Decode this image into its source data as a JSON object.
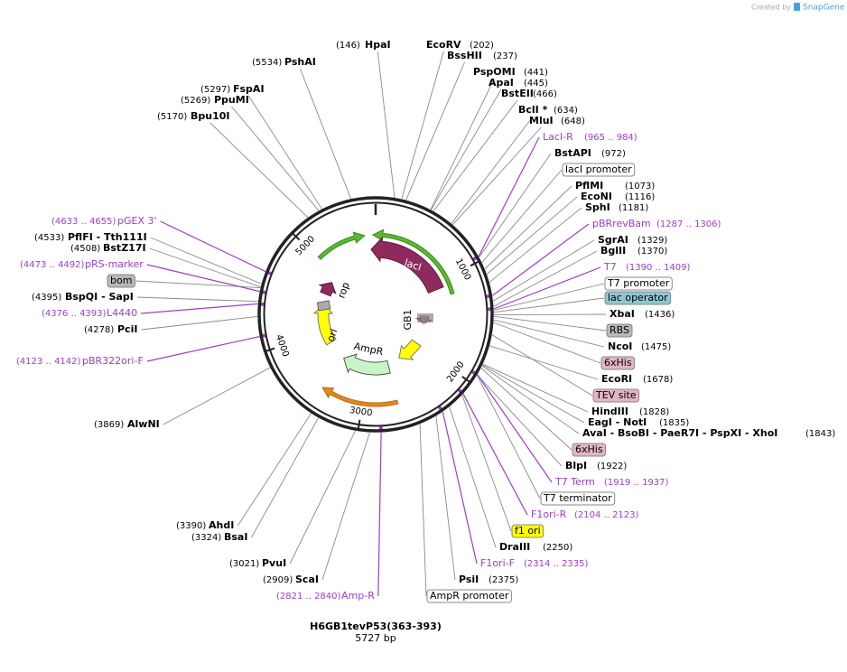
{
  "credit": {
    "text": "Created by",
    "brand": "SnapGene"
  },
  "title": "H6GB1tevP53(363-393)",
  "length": "5727 bp",
  "ring_ticks": [
    "1000",
    "2000",
    "3000",
    "4000",
    "5000"
  ],
  "features": [
    {
      "name": "lacI"
    },
    {
      "name": "rop"
    },
    {
      "name": "ori"
    },
    {
      "name": "AmpR"
    },
    {
      "name": "GB1"
    }
  ],
  "labels": [
    {
      "name": "HpaI",
      "position": "(146)"
    },
    {
      "name": "EcoRV",
      "position": "(202)"
    },
    {
      "name": "BssHII",
      "position": "(237)"
    },
    {
      "name": "PspOMI",
      "position": "(441)"
    },
    {
      "name": "ApaI",
      "position": "(445)"
    },
    {
      "name": "BstEII",
      "position": "(466)"
    },
    {
      "name": "BclI *",
      "position": "(634)"
    },
    {
      "name": "MluI",
      "position": "(648)"
    },
    {
      "name": "LacI-R",
      "position": "(965 .. 984)",
      "color": "#a03cc8"
    },
    {
      "name": "BstAPI",
      "position": "(972)"
    },
    {
      "name": "lacI promoter",
      "fill": "#ffffff"
    },
    {
      "name": "PflMI",
      "position": "(1073)"
    },
    {
      "name": "EcoNI",
      "position": "(1116)"
    },
    {
      "name": "SphI",
      "position": "(1181)"
    },
    {
      "name": "pBRrevBam",
      "position": "(1287 .. 1306)",
      "color": "#a03cc8"
    },
    {
      "name": "SgrAI",
      "position": "(1329)"
    },
    {
      "name": "BglII",
      "position": "(1370)"
    },
    {
      "name": "T7",
      "position": "(1390 .. 1409)",
      "color": "#a03cc8"
    },
    {
      "name": "T7 promoter",
      "fill": "#ffffff"
    },
    {
      "name": "lac operator",
      "fill": "#8fc6cf"
    },
    {
      "name": "XbaI",
      "position": "(1436)"
    },
    {
      "name": "RBS",
      "fill": "#b8b8b8"
    },
    {
      "name": "NcoI",
      "position": "(1475)"
    },
    {
      "name": "6xHis",
      "fill": "#e3b5c4"
    },
    {
      "name": "EcoRI",
      "position": "(1678)"
    },
    {
      "name": "TEV site",
      "fill": "#e3b5c4"
    },
    {
      "name": "HindIII",
      "position": "(1828)"
    },
    {
      "name": "EagI - NotI",
      "position": "(1835)"
    },
    {
      "name": "AvaI - BsoBI - PaeR7I - PspXI - XhoI",
      "position": "(1843)"
    },
    {
      "name": "6xHis",
      "fill": "#e3b5c4"
    },
    {
      "name": "BlpI",
      "position": "(1922)"
    },
    {
      "name": "T7 Term",
      "position": "(1919 .. 1937)",
      "color": "#a03cc8"
    },
    {
      "name": "T7 terminator",
      "fill": "#ffffff"
    },
    {
      "name": "F1ori-R",
      "position": "(2104 .. 2123)",
      "color": "#a03cc8"
    },
    {
      "name": "f1 ori",
      "fill": "#ffff00"
    },
    {
      "name": "DraIII",
      "position": "(2250)"
    },
    {
      "name": "F1ori-F",
      "position": "(2314 .. 2335)",
      "color": "#a03cc8"
    },
    {
      "name": "PsiI",
      "position": "(2375)"
    },
    {
      "name": "AmpR promoter",
      "fill": "#ffffff"
    },
    {
      "name": "Amp-R",
      "position": "(2821 .. 2840)",
      "color": "#a03cc8"
    },
    {
      "name": "ScaI",
      "position": "(2909)"
    },
    {
      "name": "PvuI",
      "position": "(3021)"
    },
    {
      "name": "BsaI",
      "position": "(3324)"
    },
    {
      "name": "AhdI",
      "position": "(3390)"
    },
    {
      "name": "AlwNI",
      "position": "(3869)"
    },
    {
      "name": "pBR322ori-F",
      "position": "(4123 .. 4142)",
      "color": "#a03cc8"
    },
    {
      "name": "PciI",
      "position": "(4278)"
    },
    {
      "name": "L4440",
      "position": "(4376 .. 4393)",
      "color": "#a03cc8"
    },
    {
      "name": "BspQI - SapI",
      "position": "(4395)"
    },
    {
      "name": "bom",
      "fill": "#b8b8b8"
    },
    {
      "name": "pRS-marker",
      "position": "(4473 .. 4492)",
      "color": "#a03cc8"
    },
    {
      "name": "BstZ17I",
      "position": "(4508)"
    },
    {
      "name": "PflFI - Tth111I",
      "position": "(4533)"
    },
    {
      "name": "pGEX 3'",
      "position": "(4633 .. 4655)",
      "color": "#a03cc8"
    },
    {
      "name": "Bpu10I",
      "position": "(5170)"
    },
    {
      "name": "PpuMI",
      "position": "(5269)"
    },
    {
      "name": "FspAI",
      "position": "(5297)"
    },
    {
      "name": "PshAI",
      "position": "(5534)"
    }
  ]
}
